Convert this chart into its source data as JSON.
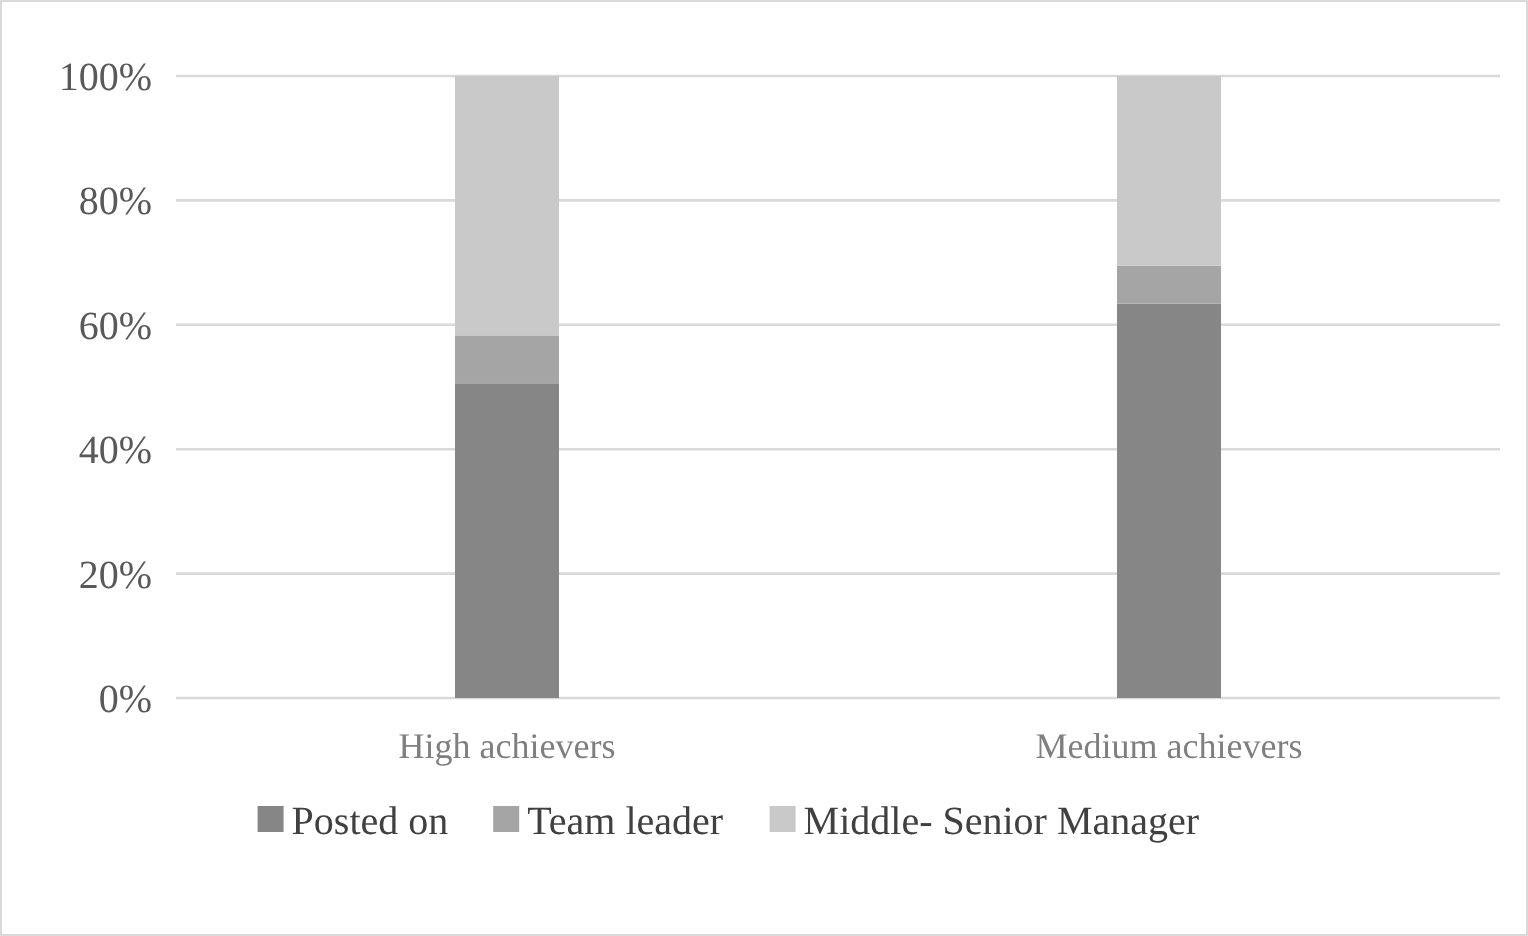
{
  "chart_data": {
    "type": "bar",
    "stacked": true,
    "categories": [
      "High achievers",
      "Medium achievers"
    ],
    "series": [
      {
        "name": "Posted on",
        "color": "#868686",
        "values": [
          50.6,
          63.4
        ]
      },
      {
        "name": "Team leader",
        "color": "#a5a5a5",
        "values": [
          7.7,
          6.1
        ]
      },
      {
        "name": "Middle- Senior Manager",
        "color": "#c9c9c9",
        "values": [
          41.7,
          30.5
        ]
      }
    ],
    "ylim": [
      0,
      100
    ],
    "yticks": [
      {
        "value": 0,
        "label": "0%"
      },
      {
        "value": 20,
        "label": "20%"
      },
      {
        "value": 40,
        "label": "40%"
      },
      {
        "value": 60,
        "label": "60%"
      },
      {
        "value": 80,
        "label": "80%"
      },
      {
        "value": 100,
        "label": "100%"
      }
    ],
    "grid": "y",
    "legend": "bottom"
  }
}
